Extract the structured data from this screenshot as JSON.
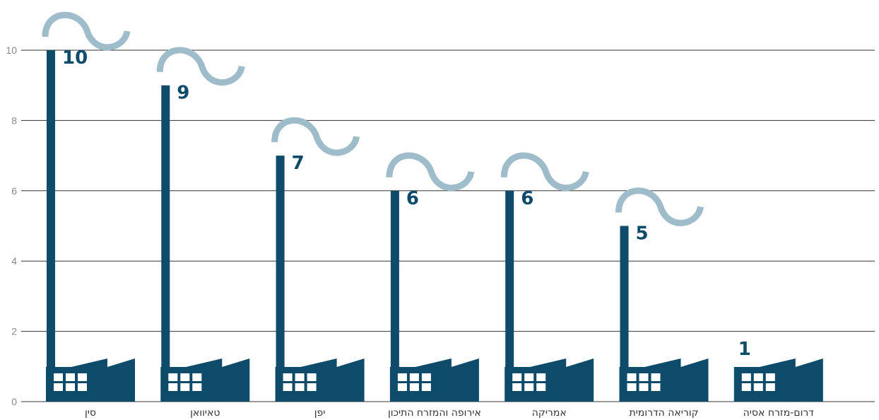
{
  "chart_data": {
    "type": "bar",
    "categories": [
      "סין",
      "טאיוואן",
      "יפן",
      "אירופה והמזרח התיכון",
      "אמריקה",
      "קוריאה הדרומית",
      "דרום-מזרח אסיה"
    ],
    "values": [
      10,
      9,
      7,
      6,
      6,
      5,
      1
    ],
    "value_labels": [
      "10",
      "9",
      "7",
      "6",
      "6",
      "5",
      "1"
    ],
    "y_ticks": [
      "0",
      "2",
      "4",
      "6",
      "8",
      "10"
    ],
    "ylim": [
      0,
      10
    ],
    "grid": true,
    "colors": {
      "bar": "#0e4b6a",
      "smoke": "#9fbccb",
      "window": "#ffffff",
      "grid": "#333333",
      "tick": "#8a8a8a"
    },
    "icons": {
      "bar_shape": "factory-icon",
      "top_decoration": "smoke-icon"
    }
  }
}
